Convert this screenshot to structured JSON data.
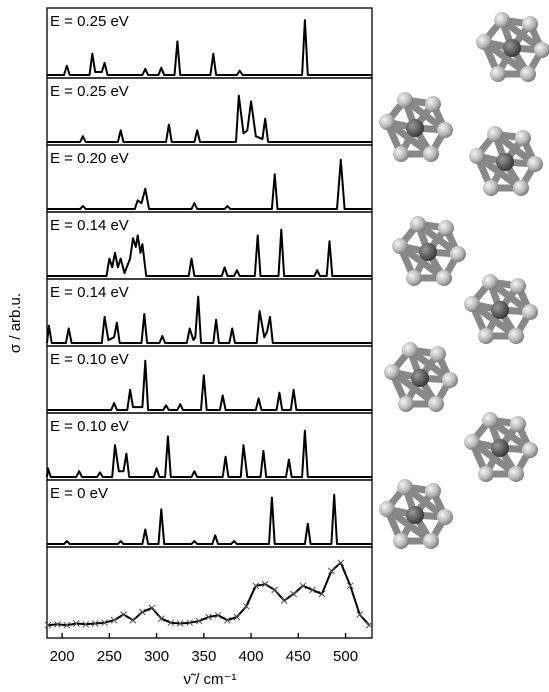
{
  "chart_data": {
    "type": "line",
    "xlabel": "ν̃ / cm⁻¹",
    "ylabel": "σ / arb.u.",
    "xlim": [
      184,
      528
    ],
    "xticks": [
      200,
      250,
      300,
      350,
      400,
      450,
      500
    ],
    "color": "#000000",
    "panels": [
      {
        "label": "E = 0.25 eV",
        "ylim": [
          0,
          1
        ],
        "x": [
          184,
          202,
          205,
          208,
          229,
          232,
          235,
          242,
          245,
          248,
          285,
          288,
          291,
          302,
          305,
          308,
          319,
          322,
          325,
          357,
          360,
          363,
          385,
          388,
          391,
          454,
          457,
          460,
          528
        ],
        "values": [
          0,
          0,
          0.15,
          0,
          0,
          0.35,
          0.05,
          0.05,
          0.2,
          0,
          0,
          0.1,
          0,
          0,
          0.12,
          0,
          0,
          0.55,
          0,
          0,
          0.35,
          0,
          0,
          0.07,
          0,
          0,
          0.9,
          0,
          0
        ]
      },
      {
        "label": "E = 0.25 eV",
        "ylim": [
          0,
          1
        ],
        "x": [
          184,
          219,
          222,
          225,
          259,
          262,
          265,
          310,
          313,
          316,
          340,
          343,
          346,
          384,
          387,
          392,
          396,
          400,
          405,
          412,
          415,
          418,
          528
        ],
        "values": [
          0,
          0,
          0.1,
          0,
          0,
          0.2,
          0,
          0,
          0.3,
          0,
          0,
          0.2,
          0,
          0,
          0.8,
          0.15,
          0.2,
          0.7,
          0.1,
          0.05,
          0.4,
          0,
          0
        ]
      },
      {
        "label": "E = 0.20 eV",
        "ylim": [
          0,
          1
        ],
        "x": [
          184,
          219,
          222,
          225,
          277,
          280,
          284,
          288,
          292,
          337,
          340,
          343,
          372,
          375,
          378,
          422,
          425,
          428,
          491,
          495,
          499,
          528
        ],
        "values": [
          0,
          0,
          0.05,
          0,
          0,
          0.15,
          0.1,
          0.35,
          0,
          0,
          0.1,
          0,
          0,
          0.05,
          0,
          0,
          0.6,
          0,
          0,
          0.85,
          0,
          0
        ]
      },
      {
        "label": "E = 0.14 eV",
        "ylim": [
          0,
          1
        ],
        "x": [
          184,
          247,
          250,
          253,
          256,
          259,
          262,
          266,
          272,
          275,
          278,
          280,
          283,
          285,
          289,
          334,
          337,
          340,
          369,
          372,
          375,
          382,
          385,
          388,
          404,
          407,
          410,
          429,
          432,
          435,
          467,
          470,
          473,
          480,
          483,
          486,
          528
        ],
        "values": [
          0,
          0,
          0.3,
          0.15,
          0.4,
          0.15,
          0.3,
          0.05,
          0.3,
          0.65,
          0.5,
          0.7,
          0.4,
          0.55,
          0,
          0,
          0.3,
          0,
          0,
          0.15,
          0,
          0,
          0.1,
          0,
          0,
          0.7,
          0,
          0,
          0.8,
          0,
          0,
          0.1,
          0,
          0,
          0.6,
          0,
          0
        ]
      },
      {
        "label": "E = 0.14 eV",
        "ylim": [
          0,
          1
        ],
        "x": [
          184,
          186,
          189,
          204,
          207,
          210,
          242,
          245,
          249,
          255,
          258,
          261,
          284,
          287,
          290,
          303,
          306,
          309,
          332,
          335,
          339,
          341,
          344,
          347,
          360,
          363,
          366,
          377,
          380,
          383,
          406,
          409,
          414,
          417,
          420,
          423,
          528
        ],
        "values": [
          0,
          0.3,
          0,
          0,
          0.25,
          0,
          0,
          0.45,
          0.05,
          0.1,
          0.35,
          0,
          0,
          0.5,
          0,
          0,
          0.12,
          0,
          0,
          0.25,
          0.05,
          0.1,
          0.8,
          0,
          0,
          0.4,
          0,
          0,
          0.25,
          0,
          0,
          0.55,
          0.1,
          0.2,
          0.45,
          0,
          0
        ]
      },
      {
        "label": "E = 0.10 eV",
        "ylim": [
          0,
          1
        ],
        "x": [
          184,
          252,
          255,
          258,
          269,
          272,
          275,
          285,
          288,
          291,
          307,
          310,
          313,
          322,
          325,
          328,
          347,
          350,
          353,
          367,
          370,
          373,
          405,
          408,
          411,
          427,
          430,
          433,
          442,
          445,
          448,
          528
        ],
        "values": [
          0,
          0,
          0.12,
          0,
          0,
          0.35,
          0.05,
          0.05,
          0.85,
          0,
          0,
          0.08,
          0,
          0,
          0.1,
          0,
          0,
          0.6,
          0,
          0,
          0.25,
          0,
          0,
          0.2,
          0,
          0,
          0.3,
          0,
          0,
          0.35,
          0,
          0
        ]
      },
      {
        "label": "E = 0.10 eV",
        "ylim": [
          0,
          1
        ],
        "x": [
          184,
          185,
          188,
          215,
          218,
          221,
          237,
          240,
          243,
          253,
          256,
          260,
          265,
          268,
          271,
          297,
          300,
          303,
          309,
          312,
          315,
          337,
          340,
          343,
          370,
          373,
          376,
          389,
          392,
          396,
          410,
          413,
          416,
          437,
          440,
          443,
          454,
          457,
          460,
          528
        ],
        "values": [
          0,
          0.15,
          0,
          0,
          0.1,
          0,
          0,
          0.08,
          0,
          0,
          0.55,
          0.1,
          0.1,
          0.4,
          0,
          0,
          0.15,
          0,
          0,
          0.7,
          0,
          0,
          0.1,
          0,
          0,
          0.35,
          0,
          0,
          0.55,
          0,
          0,
          0.45,
          0,
          0,
          0.3,
          0,
          0,
          0.8,
          0,
          0
        ]
      },
      {
        "label": "E = 0 eV",
        "ylim": [
          0,
          1
        ],
        "x": [
          184,
          202,
          205,
          208,
          259,
          262,
          265,
          285,
          288,
          291,
          302,
          305,
          308,
          337,
          340,
          343,
          359,
          362,
          365,
          379,
          382,
          385,
          419,
          422,
          425,
          457,
          460,
          463,
          485,
          488,
          491,
          528
        ],
        "values": [
          0,
          0,
          0.05,
          0,
          0,
          0.05,
          0,
          0,
          0.25,
          0,
          0,
          0.6,
          0,
          0,
          0.05,
          0,
          0,
          0.15,
          0,
          0,
          0.05,
          0,
          0,
          0.8,
          0,
          0,
          0.35,
          0,
          0,
          0.85,
          0,
          0
        ]
      },
      {
        "ylim": [
          0,
          1
        ],
        "marker": "x",
        "x": [
          185,
          195,
          205,
          215,
          225,
          235,
          245,
          255,
          265,
          275,
          285,
          295,
          305,
          315,
          325,
          335,
          345,
          355,
          365,
          375,
          385,
          395,
          405,
          415,
          425,
          435,
          445,
          455,
          465,
          475,
          485,
          495,
          505,
          515,
          525
        ],
        "values": [
          0.12,
          0.13,
          0.12,
          0.14,
          0.13,
          0.14,
          0.15,
          0.18,
          0.25,
          0.18,
          0.28,
          0.33,
          0.2,
          0.15,
          0.14,
          0.15,
          0.17,
          0.22,
          0.24,
          0.18,
          0.22,
          0.35,
          0.6,
          0.62,
          0.55,
          0.42,
          0.5,
          0.6,
          0.55,
          0.5,
          0.78,
          0.88,
          0.6,
          0.25,
          0.12
        ]
      }
    ]
  }
}
